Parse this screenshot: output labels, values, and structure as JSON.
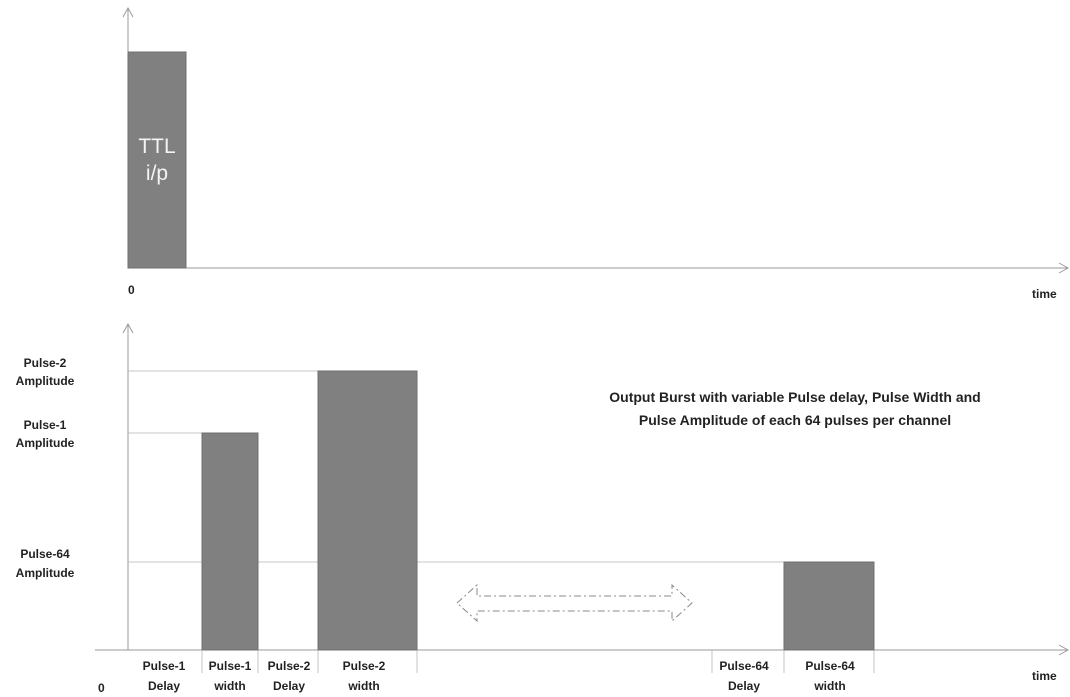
{
  "top_panel": {
    "pulse_label_line1": "TTL",
    "pulse_label_line2": "i/p",
    "origin_label": "0",
    "time_label": "time"
  },
  "bottom_panel": {
    "amplitude_labels": [
      {
        "line1": "Pulse-2",
        "line2": "Amplitude"
      },
      {
        "line1": "Pulse-1",
        "line2": "Amplitude"
      },
      {
        "line1": "Pulse-64",
        "line2": "Amplitude"
      }
    ],
    "description_line1": "Output Burst with variable Pulse delay, Pulse Width and",
    "description_line2": "Pulse Amplitude of each 64 pulses per channel",
    "origin_label": "0",
    "time_label": "time",
    "segments": [
      {
        "line1": "Pulse-1",
        "line2": "Delay"
      },
      {
        "line1": "Pulse-1",
        "line2": "width"
      },
      {
        "line1": "Pulse-2",
        "line2": "Delay"
      },
      {
        "line1": "Pulse-2",
        "line2": "width"
      },
      {
        "line1": "Pulse-64",
        "line2": "Delay"
      },
      {
        "line1": "Pulse-64",
        "line2": "width"
      }
    ]
  }
}
